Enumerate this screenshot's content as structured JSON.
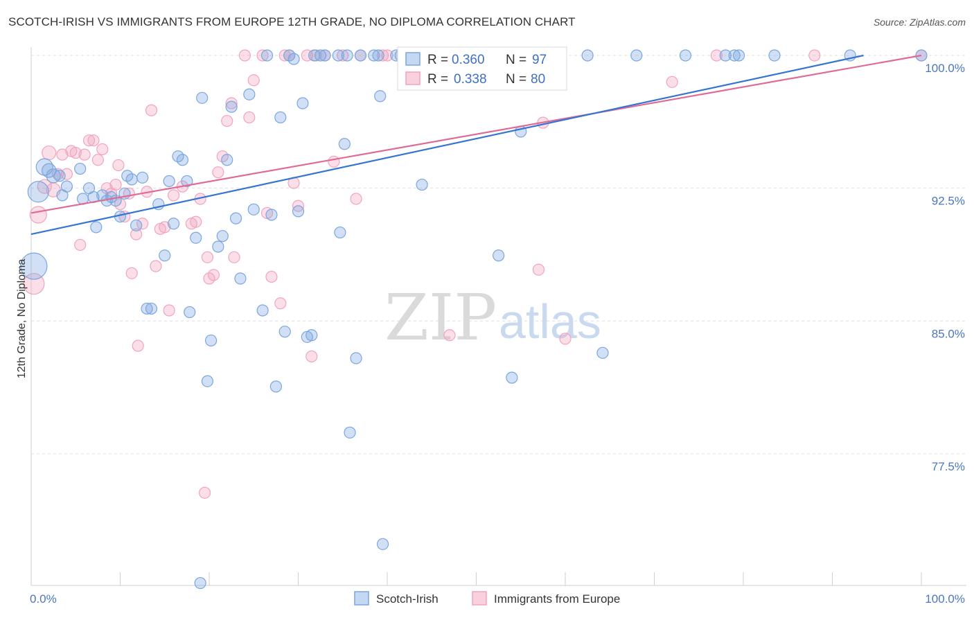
{
  "title": "SCOTCH-IRISH VS IMMIGRANTS FROM EUROPE 12TH GRADE, NO DIPLOMA CORRELATION CHART",
  "source": "Source: ZipAtlas.com",
  "watermark": {
    "zip": "ZIP",
    "atlas": "atlas"
  },
  "colors": {
    "blue": "#7aa6e0",
    "blue_line": "#3574d1",
    "pink": "#f2a3bd",
    "pink_line": "#e06a96",
    "axis_text": "#4a76c4",
    "grid": "#dcdfe6"
  },
  "stats": {
    "blue": {
      "r_label": "R =",
      "r_value": "0.360",
      "n_label": "N =",
      "n_value": "97"
    },
    "pink": {
      "r_label": "R =",
      "r_value": "0.338",
      "n_label": "N =",
      "n_value": "80"
    }
  },
  "chart_data": {
    "type": "scatter",
    "title": "SCOTCH-IRISH VS IMMIGRANTS FROM EUROPE 12TH GRADE, NO DIPLOMA CORRELATION CHART",
    "xlabel": "",
    "ylabel": "12th Grade, No Diploma",
    "xlim": [
      0,
      100
    ],
    "ylim": [
      70.2,
      100.9
    ],
    "x_tick_labels": [
      "0.0%",
      "100.0%"
    ],
    "y_ticks": [
      77.5,
      85.0,
      92.5,
      100.0
    ],
    "y_tick_labels": [
      "77.5%",
      "85.0%",
      "92.5%",
      "100.0%"
    ],
    "grid": true,
    "legend": "bottom",
    "series": [
      {
        "name": "Scotch-Irish",
        "color": "#7aa6e0",
        "trend": [
          [
            0,
            89.9
          ],
          [
            93.5,
            100.0
          ]
        ],
        "points": [
          [
            0.3,
            88.1,
            5
          ],
          [
            0.8,
            92.3,
            4
          ],
          [
            1.5,
            93.7,
            3
          ],
          [
            2,
            93.5,
            2
          ],
          [
            2.5,
            93.2,
            2
          ],
          [
            3.2,
            93.2,
            1
          ],
          [
            3.5,
            92.1,
            1
          ],
          [
            4,
            92.6,
            1
          ],
          [
            5.5,
            93.6,
            1
          ],
          [
            5.8,
            91.9,
            1
          ],
          [
            6.5,
            92.5,
            1
          ],
          [
            7,
            92.0,
            1
          ],
          [
            7.3,
            90.3,
            1
          ],
          [
            8,
            92.1,
            1
          ],
          [
            8.5,
            91.8,
            1
          ],
          [
            9,
            92.0,
            1
          ],
          [
            9.5,
            91.8,
            1
          ],
          [
            10,
            90.9,
            1
          ],
          [
            10.5,
            92.2,
            1
          ],
          [
            10.8,
            93.2,
            1
          ],
          [
            11.3,
            93.0,
            1
          ],
          [
            11.8,
            90.4,
            1
          ],
          [
            12.5,
            93.1,
            1
          ],
          [
            13,
            85.7,
            1
          ],
          [
            13.5,
            85.7,
            1
          ],
          [
            14.3,
            91.6,
            1
          ],
          [
            15,
            88.7,
            1
          ],
          [
            15.5,
            92.9,
            1
          ],
          [
            16,
            90.5,
            1
          ],
          [
            16.5,
            94.3,
            1
          ],
          [
            17,
            94.1,
            1
          ],
          [
            17.5,
            92.9,
            1
          ],
          [
            17.8,
            85.5,
            1
          ],
          [
            18.5,
            89.7,
            1
          ],
          [
            19,
            70.2,
            1
          ],
          [
            19.2,
            97.6,
            1
          ],
          [
            19.8,
            81.6,
            1
          ],
          [
            20.2,
            83.9,
            1
          ],
          [
            21,
            89.2,
            1
          ],
          [
            21.5,
            89.8,
            1
          ],
          [
            22,
            94.1,
            1
          ],
          [
            22.5,
            97.1,
            1
          ],
          [
            23,
            90.8,
            1
          ],
          [
            23.5,
            87.4,
            1
          ],
          [
            24.5,
            97.8,
            1
          ],
          [
            25,
            91.3,
            1
          ],
          [
            26,
            85.6,
            1
          ],
          [
            26.5,
            100.0,
            1
          ],
          [
            27,
            91.0,
            1
          ],
          [
            27.5,
            81.3,
            1
          ],
          [
            28,
            96.5,
            1
          ],
          [
            28.5,
            84.4,
            1
          ],
          [
            29,
            100.0,
            1
          ],
          [
            29.5,
            99.8,
            1
          ],
          [
            30,
            91.2,
            1
          ],
          [
            30.5,
            97.3,
            1
          ],
          [
            31,
            84.1,
            1
          ],
          [
            31.5,
            84.2,
            1
          ],
          [
            31.8,
            100.0,
            1
          ],
          [
            32.5,
            100.0,
            1
          ],
          [
            33,
            100.0,
            1
          ],
          [
            34.5,
            100.0,
            1
          ],
          [
            34.7,
            90.0,
            1
          ],
          [
            35.2,
            95.0,
            1
          ],
          [
            35.5,
            100.0,
            1
          ],
          [
            35.8,
            78.7,
            1
          ],
          [
            36.5,
            82.9,
            1
          ],
          [
            37,
            100.0,
            1
          ],
          [
            38.5,
            100.0,
            1
          ],
          [
            39,
            100.0,
            1
          ],
          [
            39.2,
            97.7,
            1
          ],
          [
            39.5,
            72.4,
            1
          ],
          [
            41,
            100.0,
            1
          ],
          [
            41.5,
            100.0,
            1
          ],
          [
            43,
            100.0,
            1
          ],
          [
            43.5,
            100.0,
            1
          ],
          [
            43.9,
            92.7,
            1
          ],
          [
            45,
            100.0,
            1
          ],
          [
            47,
            100.0,
            1
          ],
          [
            48.5,
            100.0,
            1
          ],
          [
            50.5,
            100.0,
            1
          ],
          [
            51,
            100.0,
            1
          ],
          [
            52,
            100.0,
            1
          ],
          [
            52.5,
            88.7,
            1
          ],
          [
            54,
            81.8,
            1
          ],
          [
            55,
            95.7,
            1
          ],
          [
            56.5,
            100.0,
            1
          ],
          [
            57.2,
            100.0,
            1
          ],
          [
            58,
            100.0,
            1
          ],
          [
            62.5,
            100.0,
            1
          ],
          [
            64.2,
            83.2,
            1
          ],
          [
            68,
            100.0,
            1
          ],
          [
            73.5,
            100.0,
            1
          ],
          [
            78,
            100.0,
            1
          ],
          [
            79,
            100.0,
            1
          ],
          [
            79.5,
            100.0,
            1
          ],
          [
            83.5,
            100.0,
            1
          ],
          [
            92,
            100.0,
            1
          ],
          [
            100,
            100.0,
            1
          ]
        ]
      },
      {
        "name": "Immigrants from Europe",
        "color": "#f2a3bd",
        "trend": [
          [
            0,
            91.1
          ],
          [
            100,
            100.0
          ]
        ],
        "points": [
          [
            0.3,
            87.1,
            4
          ],
          [
            0.8,
            91.0,
            3
          ],
          [
            1.5,
            92.6,
            2
          ],
          [
            2,
            94.5,
            2
          ],
          [
            2.5,
            92.4,
            2
          ],
          [
            3,
            93.3,
            1
          ],
          [
            3.5,
            94.4,
            1
          ],
          [
            4,
            93.3,
            1
          ],
          [
            4.5,
            94.6,
            1
          ],
          [
            5,
            94.5,
            1
          ],
          [
            5.5,
            89.3,
            1
          ],
          [
            6,
            94.4,
            1
          ],
          [
            6.5,
            95.2,
            1
          ],
          [
            7,
            95.2,
            1
          ],
          [
            7.5,
            94.1,
            1
          ],
          [
            8,
            94.7,
            1
          ],
          [
            8.5,
            92.5,
            1
          ],
          [
            9,
            92.2,
            1
          ],
          [
            9.5,
            92.7,
            1
          ],
          [
            9.8,
            93.8,
            1
          ],
          [
            10,
            91.6,
            1
          ],
          [
            10.5,
            90.9,
            1
          ],
          [
            11,
            92.2,
            1
          ],
          [
            11.3,
            87.7,
            1
          ],
          [
            11.8,
            89.9,
            1
          ],
          [
            12,
            83.6,
            1
          ],
          [
            12.5,
            90.5,
            1
          ],
          [
            13,
            92.3,
            1
          ],
          [
            13.5,
            96.9,
            1
          ],
          [
            14,
            88.1,
            1
          ],
          [
            14.5,
            90.2,
            1
          ],
          [
            15,
            90.3,
            1
          ],
          [
            15.5,
            85.6,
            1
          ],
          [
            16,
            92.1,
            1
          ],
          [
            17,
            92.6,
            1
          ],
          [
            18,
            90.5,
            1
          ],
          [
            18.5,
            90.6,
            1
          ],
          [
            19,
            91.9,
            1
          ],
          [
            19.5,
            75.3,
            1
          ],
          [
            19.8,
            88.6,
            1
          ],
          [
            20,
            87.4,
            1
          ],
          [
            20.5,
            87.6,
            1
          ],
          [
            21,
            93.4,
            1
          ],
          [
            21.5,
            94.3,
            1
          ],
          [
            22,
            96.3,
            1
          ],
          [
            22.5,
            97.3,
            1
          ],
          [
            22.8,
            88.6,
            1
          ],
          [
            24,
            100.0,
            1
          ],
          [
            24.5,
            96.5,
            1
          ],
          [
            25,
            98.6,
            1
          ],
          [
            26,
            100.0,
            1
          ],
          [
            26.5,
            91.1,
            1
          ],
          [
            27,
            87.5,
            1
          ],
          [
            28,
            86.0,
            1
          ],
          [
            28.5,
            100.0,
            1
          ],
          [
            29,
            100.0,
            1
          ],
          [
            29.5,
            92.8,
            1
          ],
          [
            30,
            91.5,
            1
          ],
          [
            31,
            100.0,
            1
          ],
          [
            31.5,
            83.0,
            1
          ],
          [
            32,
            100.0,
            1
          ],
          [
            33,
            100.0,
            1
          ],
          [
            34,
            94.0,
            1
          ],
          [
            35,
            100.0,
            1
          ],
          [
            36.5,
            91.9,
            1
          ],
          [
            37,
            100.0,
            1
          ],
          [
            39.5,
            100.0,
            1
          ],
          [
            40,
            100.0,
            1
          ],
          [
            45,
            100.0,
            1
          ],
          [
            47,
            84.2,
            1
          ],
          [
            53,
            100.0,
            1
          ],
          [
            55,
            100.0,
            1
          ],
          [
            56.5,
            100.0,
            1
          ],
          [
            57,
            87.9,
            1
          ],
          [
            57.5,
            96.2,
            1
          ],
          [
            60,
            84.0,
            1
          ],
          [
            72,
            98.5,
            1
          ],
          [
            77,
            100.0,
            1
          ],
          [
            88,
            100.0,
            1
          ],
          [
            100,
            100.0,
            1
          ]
        ]
      }
    ]
  }
}
